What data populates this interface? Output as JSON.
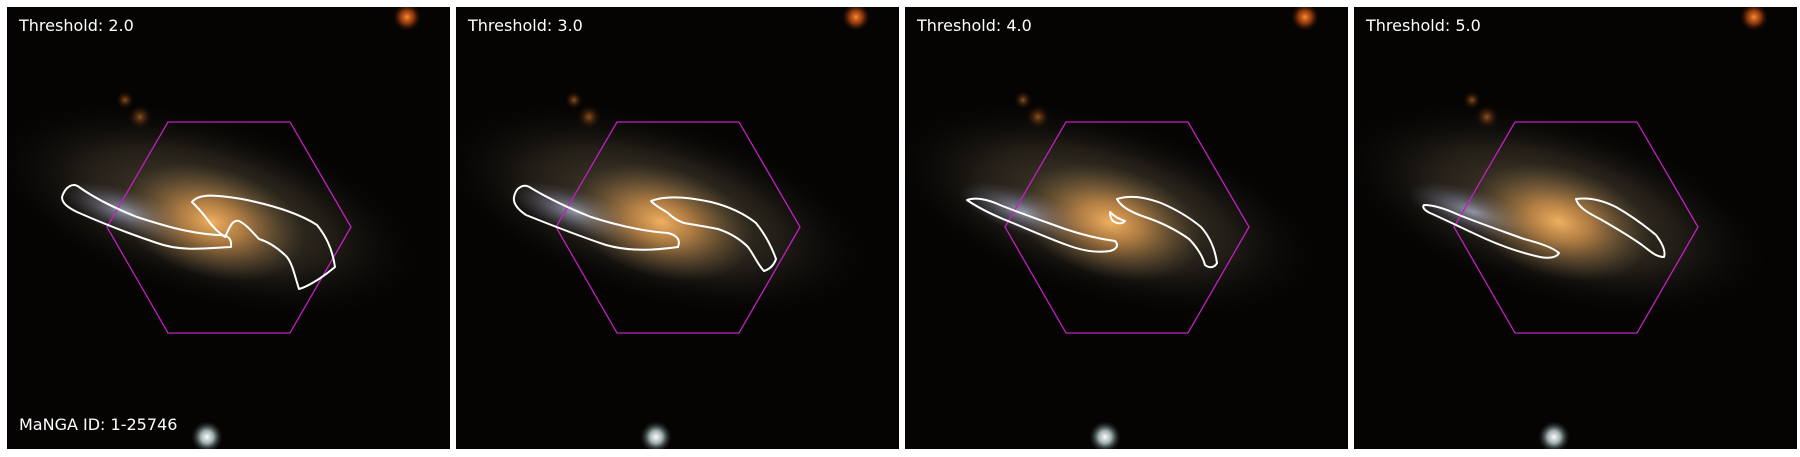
{
  "panels": [
    {
      "label": "Threshold: 2.0"
    },
    {
      "label": "Threshold: 3.0"
    },
    {
      "label": "Threshold: 4.0"
    },
    {
      "label": "Threshold: 5.0"
    }
  ],
  "galaxy_id_label": "MaNGA ID: 1-25746",
  "colors": {
    "contour": "#ffffff",
    "hexagon": "#c020c0",
    "background": "#050403",
    "galaxy_core": "#e8a040",
    "star_orange": "#e06018",
    "star_white": "#e6f0f2"
  }
}
